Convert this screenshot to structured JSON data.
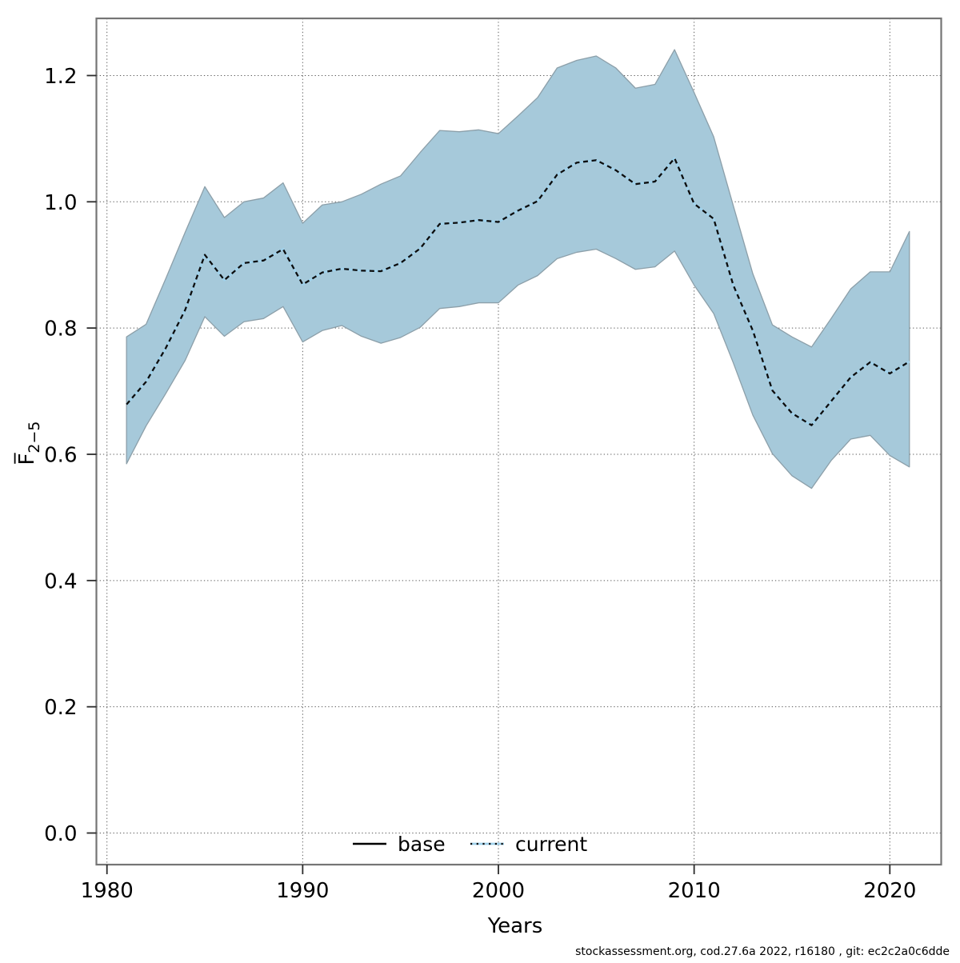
{
  "figure": {
    "footer": "stockassessment.org, cod.27.6a  2022, r16180 , git: ec2c2a0c6dde"
  },
  "chart_data": {
    "type": "line",
    "title": "",
    "xlabel": "Years",
    "ylabel": "F̅ 2−5 (mean fishing mortality ages 2-5)",
    "ylabel_main": "F̅",
    "ylabel_sub": "2−5",
    "xlim": [
      1979.45,
      2022.62
    ],
    "ylim": [
      -0.05,
      1.29
    ],
    "grid": true,
    "grid_style": "dotted",
    "x_ticks": [
      1980,
      1990,
      2000,
      2010,
      2020
    ],
    "x_tick_labels": [
      "1980",
      "1990",
      "2000",
      "2010",
      "2020"
    ],
    "y_ticks": [
      0.0,
      0.2,
      0.4,
      0.6,
      0.8,
      1.0,
      1.2
    ],
    "y_tick_labels": [
      "0.0",
      "0.2",
      "0.4",
      "0.6",
      "0.8",
      "1.0",
      "1.2"
    ],
    "legend": [
      {
        "label": "base",
        "line_style": "solid",
        "color": "#000000"
      },
      {
        "label": "current",
        "line_style": "dotted",
        "color": "#a0d2ec"
      }
    ],
    "legend_position": "bottom-center-inside",
    "years": [
      1981,
      1982,
      1983,
      1984,
      1985,
      1986,
      1987,
      1988,
      1989,
      1990,
      1991,
      1992,
      1993,
      1994,
      1995,
      1996,
      1997,
      1998,
      1999,
      2000,
      2001,
      2002,
      2003,
      2004,
      2005,
      2006,
      2007,
      2008,
      2009,
      2010,
      2011,
      2012,
      2013,
      2014,
      2015,
      2016,
      2017,
      2018,
      2019,
      2020,
      2021
    ],
    "series": [
      {
        "name": "current",
        "style": "black dashes over light-blue line",
        "values": [
          0.679,
          0.715,
          0.768,
          0.829,
          0.916,
          0.876,
          0.903,
          0.907,
          0.925,
          0.869,
          0.888,
          0.894,
          0.891,
          0.89,
          0.903,
          0.926,
          0.965,
          0.967,
          0.971,
          0.968,
          0.986,
          1.001,
          1.043,
          1.062,
          1.066,
          1.05,
          1.028,
          1.032,
          1.069,
          0.997,
          0.973,
          0.868,
          0.796,
          0.701,
          0.665,
          0.646,
          0.684,
          0.722,
          0.746,
          0.728,
          0.747
        ]
      }
    ],
    "band": {
      "name": "confidence-interval",
      "fill": "#a6c9da",
      "edge": "#8c9fa9",
      "lower": [
        0.585,
        0.645,
        0.696,
        0.749,
        0.818,
        0.787,
        0.81,
        0.815,
        0.834,
        0.778,
        0.796,
        0.804,
        0.787,
        0.776,
        0.785,
        0.801,
        0.831,
        0.834,
        0.84,
        0.84,
        0.868,
        0.883,
        0.91,
        0.92,
        0.925,
        0.91,
        0.893,
        0.897,
        0.922,
        0.868,
        0.823,
        0.745,
        0.662,
        0.601,
        0.566,
        0.546,
        0.59,
        0.624,
        0.63,
        0.598,
        0.58
      ],
      "upper": [
        0.786,
        0.806,
        0.878,
        0.952,
        1.024,
        0.975,
        1.0,
        1.006,
        1.03,
        0.966,
        0.995,
        1.0,
        1.012,
        1.028,
        1.041,
        1.078,
        1.113,
        1.111,
        1.114,
        1.108,
        1.136,
        1.165,
        1.212,
        1.224,
        1.231,
        1.212,
        1.18,
        1.186,
        1.241,
        1.173,
        1.103,
        0.994,
        0.886,
        0.805,
        0.786,
        0.77,
        0.815,
        0.862,
        0.889,
        0.889,
        0.953
      ]
    },
    "colors": {
      "band_fill": "#a6c9da",
      "band_edge": "#8c9fa9",
      "current_underlay": "#a0d2ec",
      "current_dash": "#0d0d0d",
      "grid": "#595959",
      "border": "#757575",
      "tick": "#2b2b2b"
    }
  }
}
